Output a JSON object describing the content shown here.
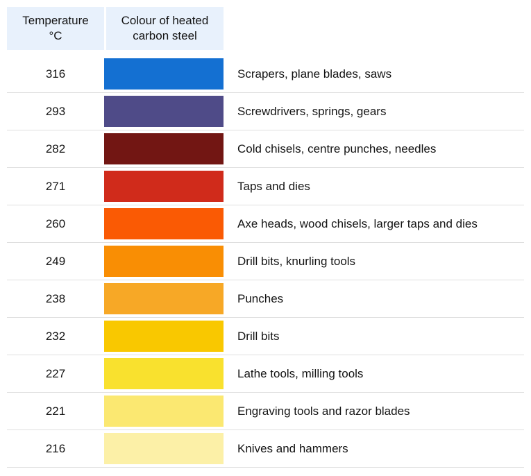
{
  "header": {
    "temperature_label": "Temperature °C",
    "colour_label": "Colour of heated carbon steel",
    "background": "#e8f1fc"
  },
  "chart_data": {
    "type": "table",
    "columns": [
      "Temperature °C",
      "Colour of heated carbon steel",
      ""
    ],
    "rows": [
      {
        "temperature": 316,
        "colour_hex": "#1470d2",
        "uses": "Scrapers, plane blades, saws"
      },
      {
        "temperature": 293,
        "colour_hex": "#4f4b88",
        "uses": "Screwdrivers, springs, gears"
      },
      {
        "temperature": 282,
        "colour_hex": "#721613",
        "uses": "Cold chisels, centre punches, needles"
      },
      {
        "temperature": 271,
        "colour_hex": "#d02b1b",
        "uses": "Taps and dies"
      },
      {
        "temperature": 260,
        "colour_hex": "#fa5a04",
        "uses": "Axe heads, wood chisels, larger taps and dies"
      },
      {
        "temperature": 249,
        "colour_hex": "#f98e04",
        "uses": "Drill bits, knurling tools"
      },
      {
        "temperature": 238,
        "colour_hex": "#f7a826",
        "uses": "Punches"
      },
      {
        "temperature": 232,
        "colour_hex": "#f9c800",
        "uses": "Drill bits"
      },
      {
        "temperature": 227,
        "colour_hex": "#f9e12e",
        "uses": "Lathe tools, milling tools"
      },
      {
        "temperature": 221,
        "colour_hex": "#fbe871",
        "uses": "Engraving tools and razor blades"
      },
      {
        "temperature": 216,
        "colour_hex": "#fcf0a7",
        "uses": "Knives and hammers"
      }
    ]
  }
}
